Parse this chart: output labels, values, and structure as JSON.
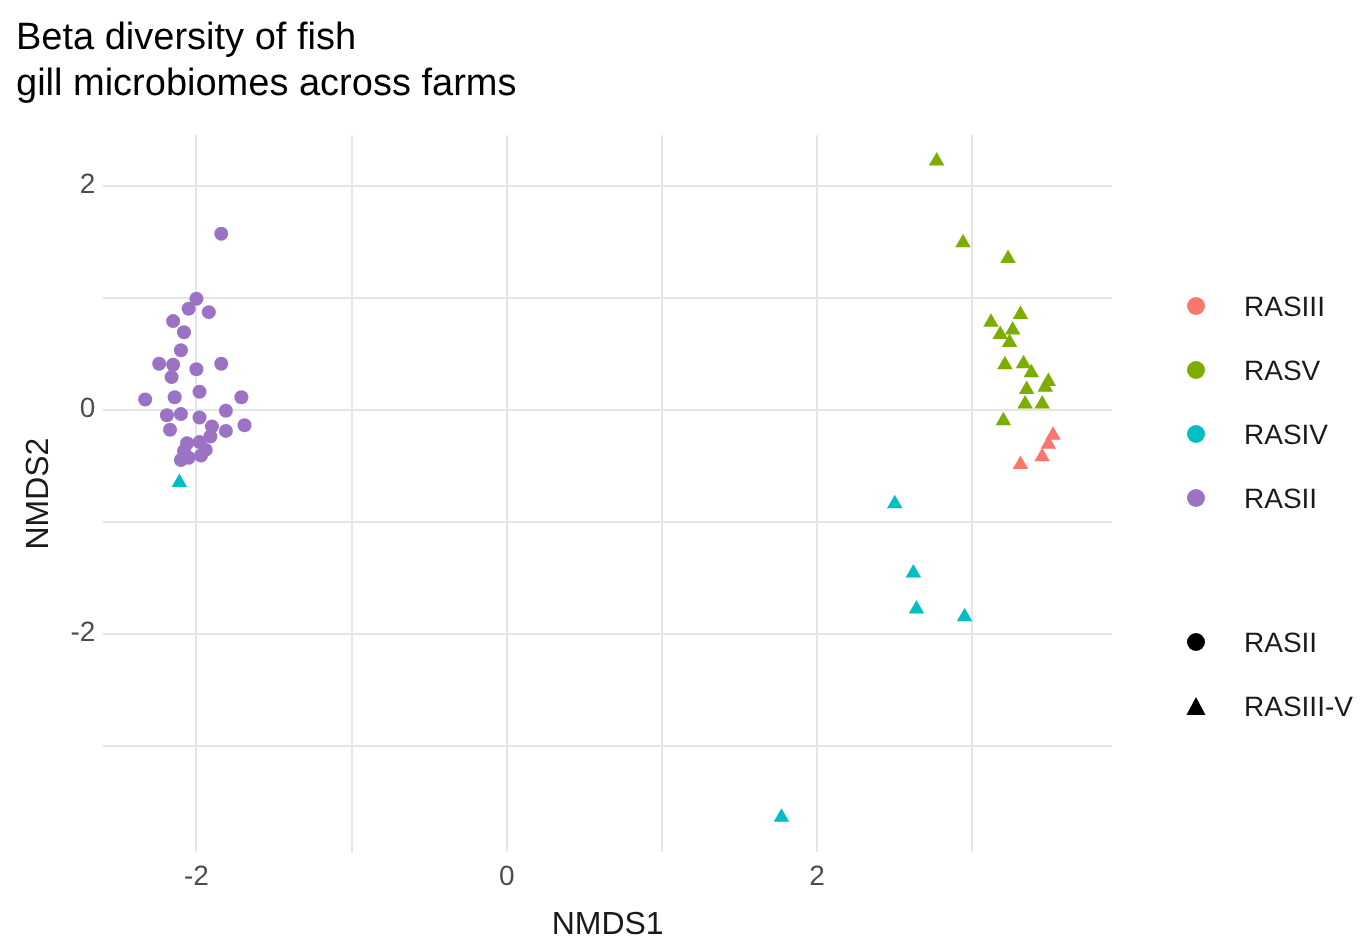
{
  "chart_data": {
    "type": "scatter",
    "title": "Beta diversity of fish\ngill microbiomes across farms",
    "xlabel": "NMDS1",
    "ylabel": "NMDS2",
    "xlim": [
      -2.6,
      3.9
    ],
    "ylim": [
      -3.95,
      2.45
    ],
    "xticks": [
      -2,
      {
        "value": -1,
        "label": null
      },
      0,
      {
        "value": 1,
        "label": null
      },
      2,
      {
        "value": 3,
        "label": null
      }
    ],
    "yticks": [
      {
        "value": -3,
        "label": null
      },
      -2,
      {
        "value": -1,
        "label": null
      },
      0,
      {
        "value": 1,
        "label": null
      },
      2
    ],
    "grid": true,
    "legend": "right",
    "annotations": [
      "RASII",
      "RASIII-V"
    ],
    "series": [
      {
        "name": "RASIII",
        "color": "#f8766d",
        "marker": "triangle",
        "x": [
          3.52,
          3.49,
          3.45,
          3.31
        ],
        "values": [
          -0.23,
          -0.31,
          -0.42,
          -0.49
        ]
      },
      {
        "name": "RASV",
        "color": "#7cae00",
        "marker": "triangle",
        "x": [
          2.77,
          2.94,
          3.23,
          3.31,
          3.12,
          3.26,
          3.18,
          3.24,
          3.21,
          3.33,
          3.38,
          3.49,
          3.47,
          3.35,
          3.34,
          3.45,
          3.2
        ],
        "values": [
          2.22,
          1.49,
          1.35,
          0.85,
          0.78,
          0.71,
          0.67,
          0.6,
          0.4,
          0.41,
          0.33,
          0.25,
          0.2,
          0.18,
          0.05,
          0.05,
          -0.1
        ]
      },
      {
        "name": "RASIV",
        "color": "#00bfc4",
        "marker": "triangle",
        "x": [
          -2.11,
          2.5,
          2.62,
          2.64,
          2.95,
          1.77
        ],
        "values": [
          -0.65,
          -0.84,
          -1.46,
          -1.78,
          -1.85,
          -3.64
        ]
      },
      {
        "name": "RASII",
        "color": "#9b72c4",
        "marker": "circle",
        "x": [
          -1.84,
          -2.0,
          -2.05,
          -1.92,
          -2.15,
          -2.08,
          -2.1,
          -2.24,
          -2.15,
          -1.84,
          -2.0,
          -2.16,
          -1.98,
          -2.33,
          -2.14,
          -1.71,
          -2.19,
          -2.1,
          -1.98,
          -1.81,
          -2.17,
          -1.9,
          -1.81,
          -1.69,
          -2.06,
          -1.98,
          -1.91,
          -2.08,
          -1.94,
          -2.05,
          -1.97,
          -2.1
        ],
        "values": [
          1.57,
          0.99,
          0.9,
          0.87,
          0.79,
          0.69,
          0.53,
          0.41,
          0.4,
          0.41,
          0.36,
          0.29,
          0.16,
          0.09,
          0.11,
          0.11,
          -0.05,
          -0.04,
          -0.07,
          -0.01,
          -0.18,
          -0.15,
          -0.19,
          -0.14,
          -0.3,
          -0.29,
          -0.24,
          -0.37,
          -0.36,
          -0.43,
          -0.41,
          -0.45
        ]
      }
    ]
  }
}
